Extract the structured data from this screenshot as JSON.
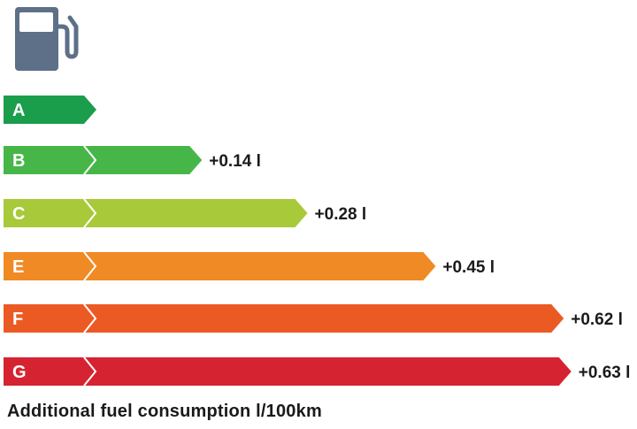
{
  "chart_data": {
    "type": "bar",
    "title": "",
    "xlabel": "Additional fuel consumption l/100km",
    "ylabel": "",
    "icon": "fuel-pump-icon",
    "categories": [
      "A",
      "B",
      "C",
      "E",
      "F",
      "G"
    ],
    "values": [
      0,
      0.14,
      0.28,
      0.45,
      0.62,
      0.63
    ],
    "value_labels": [
      "",
      "+0.14 l",
      "+0.28 l",
      "+0.45 l",
      "+0.62 l",
      "+0.63 l"
    ],
    "colors": [
      "#1a9e4b",
      "#47b649",
      "#a8c93a",
      "#f08a24",
      "#ec5a24",
      "#d62331"
    ],
    "icon_color": "#5d7088"
  }
}
